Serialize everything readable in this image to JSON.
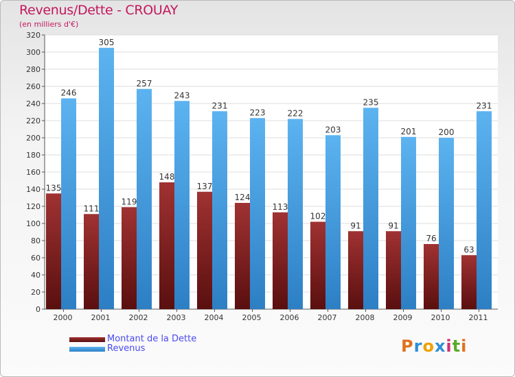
{
  "chart_data": {
    "type": "bar",
    "title": "Revenus/Dette - CROUAY",
    "subtitle": "(en milliers d'€)",
    "categories": [
      "2000",
      "2001",
      "2002",
      "2003",
      "2004",
      "2005",
      "2006",
      "2007",
      "2008",
      "2009",
      "2010",
      "2011"
    ],
    "series": [
      {
        "name": "Montant de la Dette",
        "color": "#8b1a1a",
        "values": [
          135,
          111,
          119,
          148,
          137,
          124,
          113,
          102,
          91,
          91,
          76,
          63
        ]
      },
      {
        "name": "Revenus",
        "color": "#4ba3e3",
        "values": [
          246,
          305,
          257,
          243,
          231,
          223,
          222,
          203,
          235,
          201,
          200,
          231
        ]
      }
    ],
    "yticks": [
      0,
      20,
      40,
      60,
      80,
      100,
      120,
      140,
      160,
      180,
      200,
      220,
      240,
      260,
      280,
      300,
      320
    ],
    "ylim": [
      0,
      320
    ],
    "grid": true,
    "legend": "bottom-left"
  },
  "logo": {
    "letters": [
      "P",
      "r",
      "o",
      "x",
      "i",
      "t",
      "i"
    ],
    "colors": [
      "#e07020",
      "#2e8ed8",
      "#f0a000",
      "#2e8ed8",
      "#d03070",
      "#5aaa2a",
      "#e07020"
    ]
  }
}
